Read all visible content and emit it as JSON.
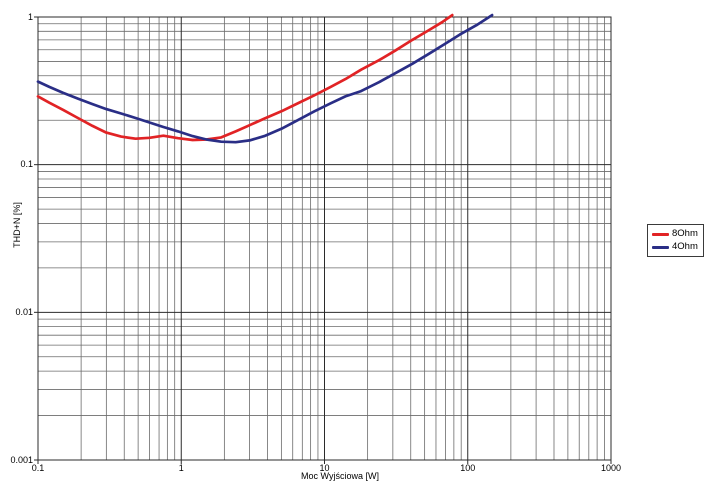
{
  "page": {
    "background": "#ffffff",
    "description": "THD+N versus output power log-log measurement plot"
  },
  "colors": {
    "series_8ohm": "#e12325",
    "series_4ohm": "#2a2e86",
    "grid_minor": "#6b6b6b",
    "grid_major": "#2b2b2b",
    "plot_border": "#2b2b2b",
    "background": "#ffffff",
    "text": "#000000",
    "legend_border": "#3a3a3a"
  },
  "chart_data": {
    "type": "line",
    "title": "",
    "xlabel": "Moc Wyjściowa [W]",
    "ylabel": "THD+N [%]",
    "x_scale": "log",
    "y_scale": "log",
    "xlim": [
      0.1,
      1000
    ],
    "ylim": [
      0.001,
      1
    ],
    "grid": "major and minor log gridlines, dark gray, full plot",
    "x_ticks": [
      0.1,
      1,
      10,
      100,
      1000
    ],
    "x_tick_labels": [
      "0.1",
      "1",
      "10",
      "100",
      "1000"
    ],
    "y_ticks": [
      1,
      0.1,
      0.01,
      0.001
    ],
    "y_tick_labels": [
      "1",
      "0.1",
      "0.01",
      "0.001"
    ],
    "legend_position": "outside-right-middle",
    "series": [
      {
        "name": "8Ohm",
        "color": "#e12325",
        "points": [
          [
            0.1,
            0.29
          ],
          [
            0.12,
            0.263
          ],
          [
            0.15,
            0.235
          ],
          [
            0.19,
            0.207
          ],
          [
            0.24,
            0.183
          ],
          [
            0.3,
            0.165
          ],
          [
            0.38,
            0.155
          ],
          [
            0.48,
            0.15
          ],
          [
            0.6,
            0.152
          ],
          [
            0.75,
            0.157
          ],
          [
            0.95,
            0.151
          ],
          [
            1.2,
            0.147
          ],
          [
            1.5,
            0.148
          ],
          [
            1.9,
            0.153
          ],
          [
            2.4,
            0.168
          ],
          [
            3,
            0.185
          ],
          [
            3.8,
            0.205
          ],
          [
            5,
            0.23
          ],
          [
            6.5,
            0.26
          ],
          [
            8.5,
            0.295
          ],
          [
            11,
            0.335
          ],
          [
            14,
            0.38
          ],
          [
            18,
            0.44
          ],
          [
            24,
            0.51
          ],
          [
            31,
            0.59
          ],
          [
            41,
            0.7
          ],
          [
            53,
            0.81
          ],
          [
            66,
            0.92
          ],
          [
            78,
            1.03
          ]
        ]
      },
      {
        "name": "4Ohm",
        "color": "#2a2e86",
        "points": [
          [
            0.1,
            0.365
          ],
          [
            0.12,
            0.336
          ],
          [
            0.15,
            0.306
          ],
          [
            0.19,
            0.28
          ],
          [
            0.24,
            0.257
          ],
          [
            0.3,
            0.238
          ],
          [
            0.38,
            0.222
          ],
          [
            0.48,
            0.207
          ],
          [
            0.6,
            0.193
          ],
          [
            0.75,
            0.18
          ],
          [
            0.95,
            0.168
          ],
          [
            1.2,
            0.156
          ],
          [
            1.5,
            0.148
          ],
          [
            1.9,
            0.143
          ],
          [
            2.4,
            0.142
          ],
          [
            3,
            0.146
          ],
          [
            3.8,
            0.156
          ],
          [
            5,
            0.175
          ],
          [
            6.5,
            0.2
          ],
          [
            8.5,
            0.23
          ],
          [
            11,
            0.26
          ],
          [
            14,
            0.29
          ],
          [
            18,
            0.315
          ],
          [
            24,
            0.362
          ],
          [
            31,
            0.415
          ],
          [
            41,
            0.482
          ],
          [
            53,
            0.56
          ],
          [
            68,
            0.65
          ],
          [
            88,
            0.76
          ],
          [
            115,
            0.88
          ],
          [
            148,
            1.03
          ]
        ]
      }
    ]
  }
}
